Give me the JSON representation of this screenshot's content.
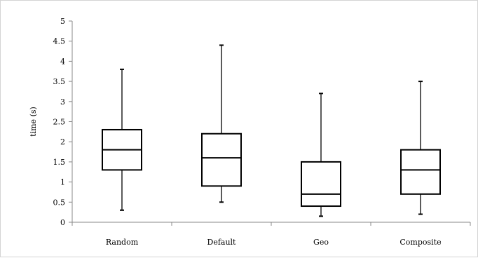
{
  "chart_data": {
    "type": "box",
    "title": "",
    "xlabel": "",
    "ylabel": "time (s)",
    "ylim": [
      0,
      5
    ],
    "yticks": [
      "0",
      "0.5",
      "1",
      "1.5",
      "2",
      "2.5",
      "3",
      "3.5",
      "4",
      "4.5",
      "5"
    ],
    "grid": false,
    "legend": "none",
    "categories": [
      "Random",
      "Default",
      "Geo",
      "Composite"
    ],
    "boxes": [
      {
        "category": "Random",
        "min": 0.3,
        "q1": 1.3,
        "median": 1.8,
        "q3": 2.3,
        "max": 3.8
      },
      {
        "category": "Default",
        "min": 0.5,
        "q1": 0.9,
        "median": 1.6,
        "q3": 2.2,
        "max": 4.4
      },
      {
        "category": "Geo",
        "min": 0.15,
        "q1": 0.4,
        "median": 0.7,
        "q3": 1.5,
        "max": 3.2
      },
      {
        "category": "Composite",
        "min": 0.2,
        "q1": 0.7,
        "median": 1.3,
        "q3": 1.8,
        "max": 3.5
      }
    ],
    "colors": {
      "box_stroke": "#000000",
      "box_fill": "#ffffff",
      "axis": "#888888"
    }
  }
}
